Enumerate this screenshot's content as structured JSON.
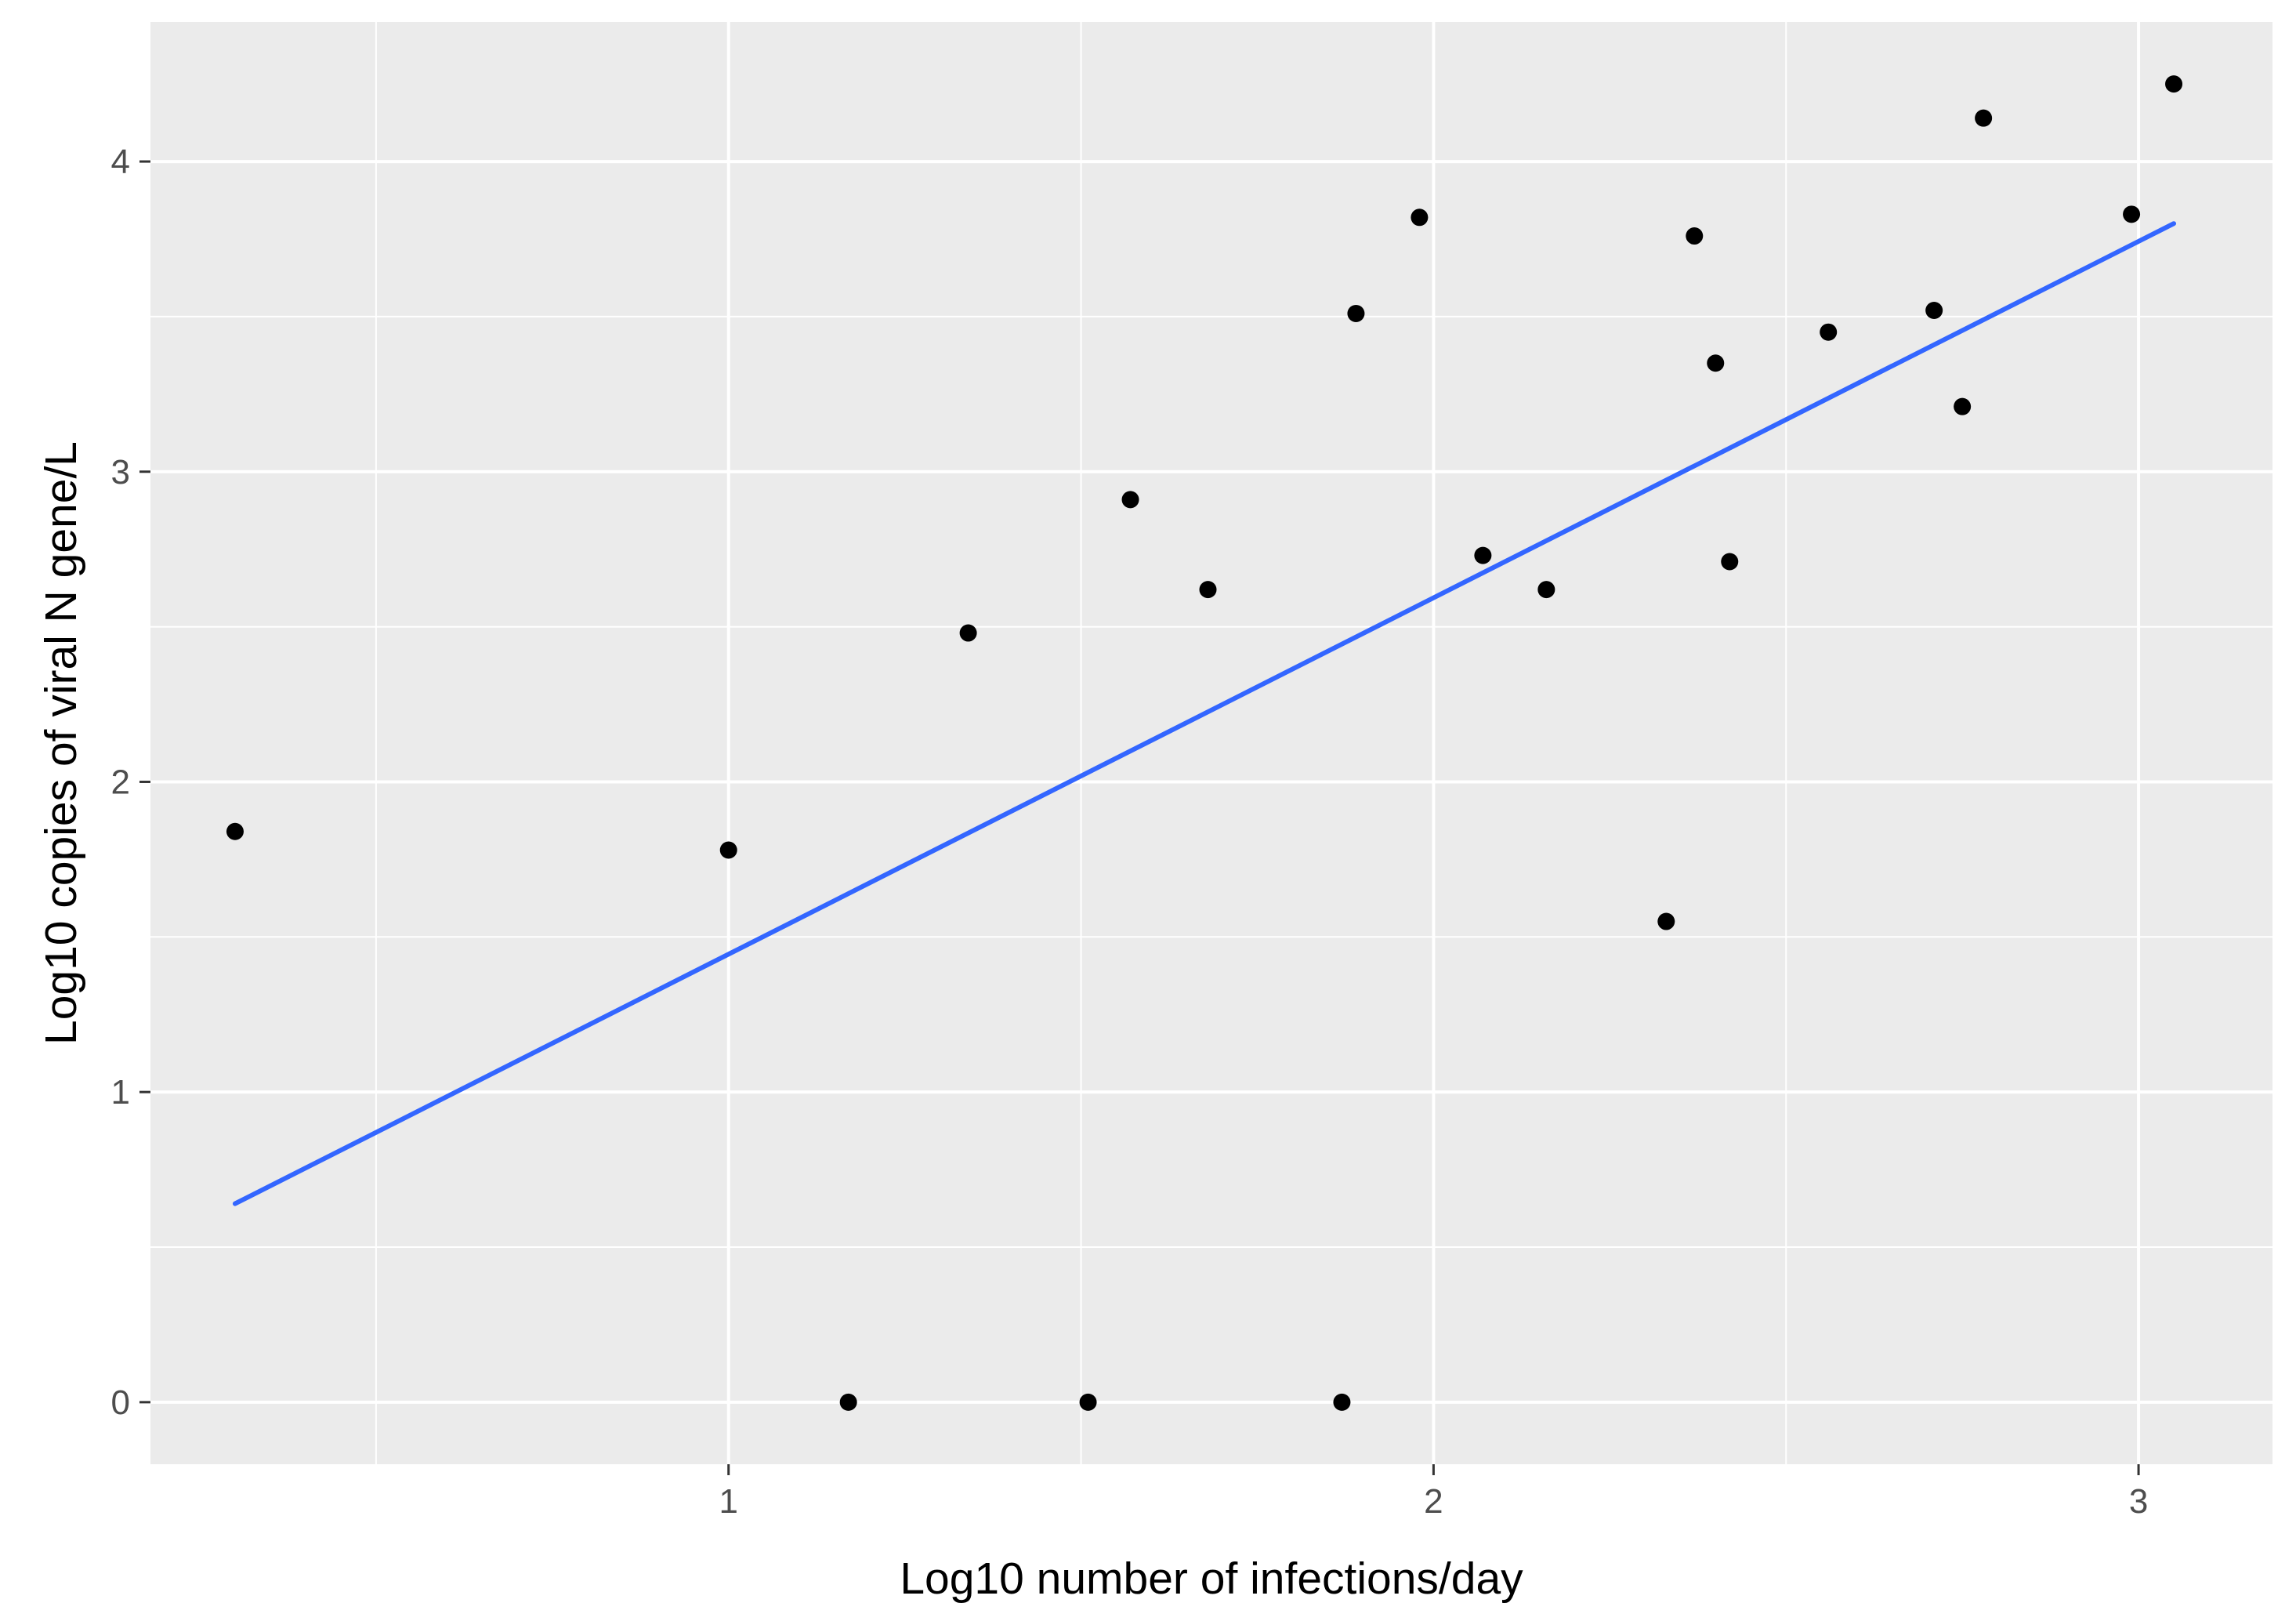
{
  "chart_data": {
    "type": "scatter",
    "title": "",
    "xlabel": "Log10 number of infections/day",
    "ylabel": "Log10 copies of viral N gene/L",
    "xlim": [
      0.18,
      3.19
    ],
    "ylim": [
      -0.2,
      4.45
    ],
    "x_ticks": [
      1,
      2,
      3
    ],
    "x_tick_labels": [
      "1",
      "2",
      "3"
    ],
    "y_ticks": [
      0,
      1,
      2,
      3,
      4
    ],
    "y_tick_labels": [
      "0",
      "1",
      "2",
      "3",
      "4"
    ],
    "grid": true,
    "background_color": "#ebebeb",
    "grid_color": "#ffffff",
    "point_color": "#000000",
    "trend_color": "#3366ff",
    "points": [
      {
        "x": 0.3,
        "y": 1.84
      },
      {
        "x": 1.0,
        "y": 1.78
      },
      {
        "x": 1.17,
        "y": 0.0
      },
      {
        "x": 1.34,
        "y": 2.48
      },
      {
        "x": 1.51,
        "y": 0.0
      },
      {
        "x": 1.57,
        "y": 2.91
      },
      {
        "x": 1.68,
        "y": 2.62
      },
      {
        "x": 1.87,
        "y": 0.0
      },
      {
        "x": 1.89,
        "y": 3.51
      },
      {
        "x": 1.98,
        "y": 3.82
      },
      {
        "x": 2.07,
        "y": 2.73
      },
      {
        "x": 2.16,
        "y": 2.62
      },
      {
        "x": 2.33,
        "y": 1.55
      },
      {
        "x": 2.37,
        "y": 3.76
      },
      {
        "x": 2.4,
        "y": 3.35
      },
      {
        "x": 2.42,
        "y": 2.71
      },
      {
        "x": 2.56,
        "y": 3.45
      },
      {
        "x": 2.71,
        "y": 3.52
      },
      {
        "x": 2.75,
        "y": 3.21
      },
      {
        "x": 2.78,
        "y": 4.14
      },
      {
        "x": 2.99,
        "y": 3.83
      },
      {
        "x": 3.05,
        "y": 4.25
      }
    ],
    "trend_line": {
      "x": [
        0.3,
        3.05
      ],
      "y": [
        0.64,
        3.8
      ]
    }
  }
}
